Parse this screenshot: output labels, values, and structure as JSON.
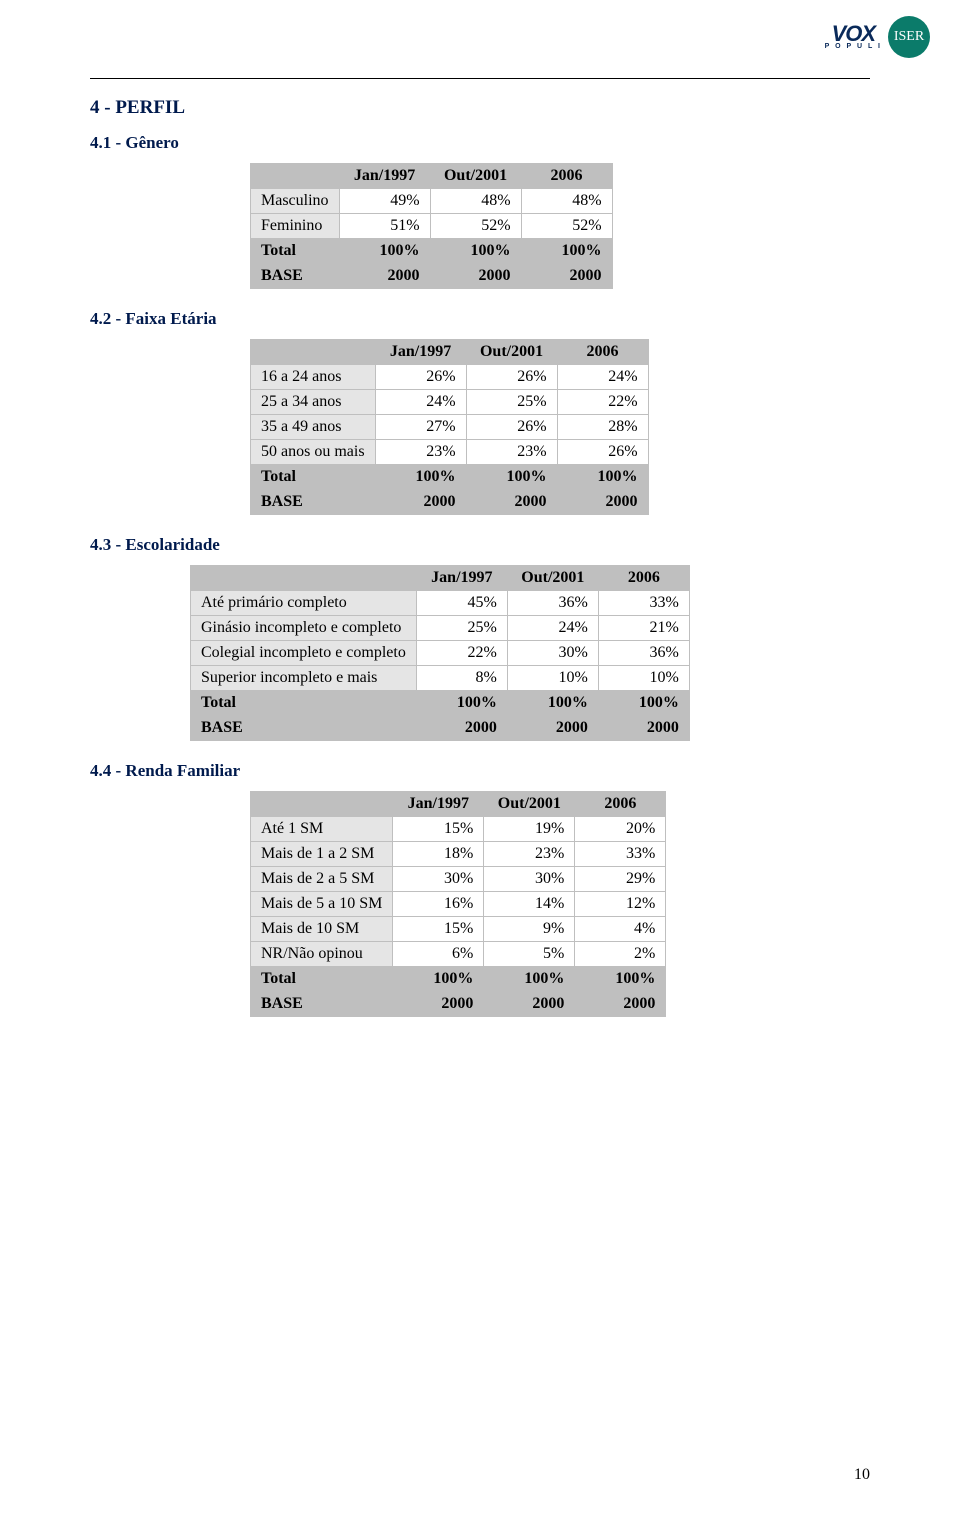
{
  "logo": {
    "vox_main": "VOX",
    "vox_sub": "P O P U L I",
    "iser": "ISER"
  },
  "section_heading": "4 - PERFIL",
  "subsections": {
    "genero": "4.1 - Gênero",
    "faixa": "4.2 - Faixa Etária",
    "escolaridade": "4.3 - Escolaridade",
    "renda": "4.4 - Renda Familiar"
  },
  "col_headers": {
    "c1": "Jan/1997",
    "c2": "Out/2001",
    "c3": "2006"
  },
  "labels": {
    "total": "Total",
    "base": "BASE"
  },
  "tables": {
    "genero": {
      "rows": [
        {
          "label": "Masculino",
          "v": [
            "49%",
            "48%",
            "48%"
          ]
        },
        {
          "label": "Feminino",
          "v": [
            "51%",
            "52%",
            "52%"
          ]
        }
      ],
      "total": [
        "100%",
        "100%",
        "100%"
      ],
      "base": [
        "2000",
        "2000",
        "2000"
      ]
    },
    "faixa": {
      "rows": [
        {
          "label": "16 a 24 anos",
          "v": [
            "26%",
            "26%",
            "24%"
          ]
        },
        {
          "label": "25 a 34 anos",
          "v": [
            "24%",
            "25%",
            "22%"
          ]
        },
        {
          "label": "35 a 49 anos",
          "v": [
            "27%",
            "26%",
            "28%"
          ]
        },
        {
          "label": "50 anos ou mais",
          "v": [
            "23%",
            "23%",
            "26%"
          ]
        }
      ],
      "total": [
        "100%",
        "100%",
        "100%"
      ],
      "base": [
        "2000",
        "2000",
        "2000"
      ]
    },
    "escolaridade": {
      "rows": [
        {
          "label": "Até primário completo",
          "v": [
            "45%",
            "36%",
            "33%"
          ]
        },
        {
          "label": "Ginásio incompleto e completo",
          "v": [
            "25%",
            "24%",
            "21%"
          ]
        },
        {
          "label": "Colegial incompleto e completo",
          "v": [
            "22%",
            "30%",
            "36%"
          ]
        },
        {
          "label": "Superior incompleto e mais",
          "v": [
            "8%",
            "10%",
            "10%"
          ]
        }
      ],
      "total": [
        "100%",
        "100%",
        "100%"
      ],
      "base": [
        "2000",
        "2000",
        "2000"
      ]
    },
    "renda": {
      "rows": [
        {
          "label": "Até 1 SM",
          "v": [
            "15%",
            "19%",
            "20%"
          ]
        },
        {
          "label": "Mais de 1 a 2 SM",
          "v": [
            "18%",
            "23%",
            "33%"
          ]
        },
        {
          "label": "Mais de 2 a 5 SM",
          "v": [
            "30%",
            "30%",
            "29%"
          ]
        },
        {
          "label": "Mais de 5 a 10 SM",
          "v": [
            "16%",
            "14%",
            "12%"
          ]
        },
        {
          "label": "Mais de 10 SM",
          "v": [
            "15%",
            "9%",
            "4%"
          ]
        },
        {
          "label": "NR/Não opinou",
          "v": [
            "6%",
            "5%",
            "2%"
          ]
        }
      ],
      "total": [
        "100%",
        "100%",
        "100%"
      ],
      "base": [
        "2000",
        "2000",
        "2000"
      ]
    }
  },
  "page_number": "10"
}
